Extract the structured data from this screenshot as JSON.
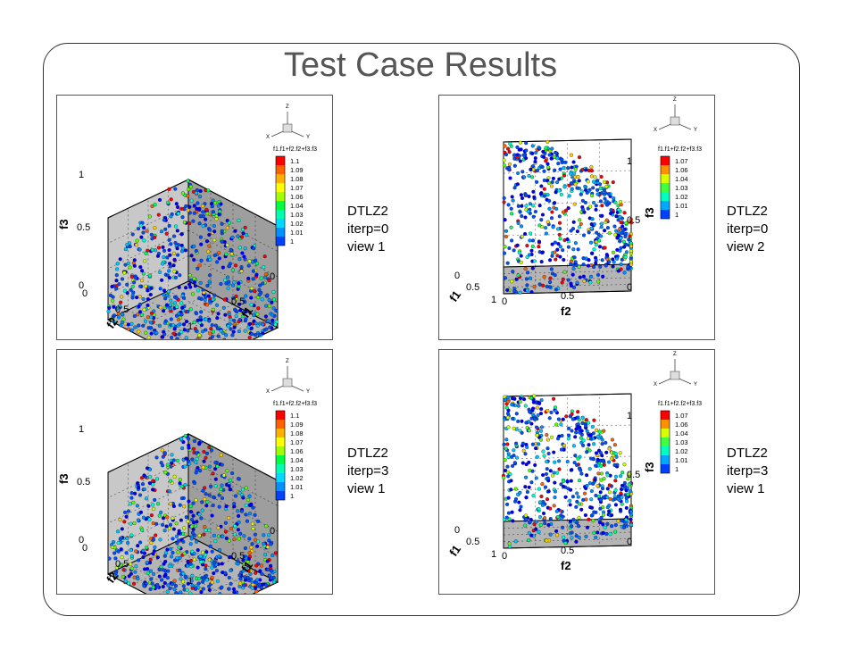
{
  "slide": {
    "title": "Test Case Results"
  },
  "panels": [
    {
      "name": "dtlz2-iterp0-view1",
      "view": "iso",
      "caption": [
        "DTLZ2",
        "iterp=0",
        "view 1"
      ],
      "chart_data": {
        "type": "scatter",
        "title": "",
        "axes": {
          "x": "f1",
          "y": "f2",
          "z": "f3",
          "range": [
            0,
            1
          ]
        },
        "ticks": [
          "0",
          "0.5",
          "1"
        ],
        "color_variable": "f1.f1+f2.f2+f3.f3",
        "legend": {
          "title": "f1.f1+f2.f2+f3.f3",
          "levels": [
            "1.1",
            "1.09",
            "1.08",
            "1.07",
            "1.06",
            "1.04",
            "1.03",
            "1.02",
            "1.01",
            "1"
          ]
        },
        "triad": {
          "x": "X",
          "y": "Y",
          "z": "Z"
        },
        "points": "approximately 600 points on the DTLZ2 Pareto front f1²+f2²+f3²≈1, f1,f2,f3 in [0,1]",
        "n_points": 600
      }
    },
    {
      "name": "dtlz2-iterp0-view2",
      "view": "side",
      "caption": [
        "DTLZ2",
        "iterp=0",
        "view 2"
      ],
      "chart_data": {
        "type": "scatter",
        "title": "",
        "axes": {
          "x": "f1",
          "y": "f2",
          "z": "f3",
          "range": [
            0,
            1
          ]
        },
        "ticks": [
          "0",
          "0.5",
          "1"
        ],
        "color_variable": "f1.f1+f2.f2+f3.f3",
        "legend": {
          "title": "f1.f1+f2.f2+f3.f3",
          "levels": [
            "1.07",
            "1.06",
            "1.04",
            "1.03",
            "1.02",
            "1.01",
            "1"
          ]
        },
        "triad": {
          "x": "X",
          "y": "Y",
          "z": "Z"
        },
        "points": "approximately 600 points on the DTLZ2 Pareto front f1²+f2²+f3²≈1, f1,f2,f3 in [0,1]",
        "n_points": 600
      }
    },
    {
      "name": "dtlz2-iterp3-view1",
      "view": "iso",
      "caption": [
        "DTLZ2",
        "iterp=3",
        "view 1"
      ],
      "chart_data": {
        "type": "scatter",
        "title": "",
        "axes": {
          "x": "f1",
          "y": "f2",
          "z": "f3",
          "range": [
            0,
            1
          ]
        },
        "ticks": [
          "0",
          "0.5",
          "1"
        ],
        "color_variable": "f1.f1+f2.f2+f3.f3",
        "legend": {
          "title": "f1.f1+f2.f2+f3.f3",
          "levels": [
            "1.1",
            "1.09",
            "1.08",
            "1.07",
            "1.06",
            "1.04",
            "1.03",
            "1.02",
            "1.01",
            "1"
          ]
        },
        "triad": {
          "x": "X",
          "y": "Y",
          "z": "Z"
        },
        "points": "approximately 600 points on the DTLZ2 Pareto front f1²+f2²+f3²≈1, f1,f2,f3 in [0,1]",
        "n_points": 600
      }
    },
    {
      "name": "dtlz2-iterp3-view1b",
      "view": "side",
      "caption": [
        "DTLZ2",
        "iterp=3",
        "view 1"
      ],
      "chart_data": {
        "type": "scatter",
        "title": "",
        "axes": {
          "x": "f1",
          "y": "f2",
          "z": "f3",
          "range": [
            0,
            1
          ]
        },
        "ticks": [
          "0",
          "0.5",
          "1"
        ],
        "color_variable": "f1.f1+f2.f2+f3.f3",
        "legend": {
          "title": "f1.f1+f2.f2+f3.f3",
          "levels": [
            "1.07",
            "1.06",
            "1.04",
            "1.03",
            "1.02",
            "1.01",
            "1"
          ]
        },
        "triad": {
          "x": "X",
          "y": "Y",
          "z": "Z"
        },
        "points": "approximately 600 points on the DTLZ2 Pareto front f1²+f2²+f3²≈1, f1,f2,f3 in [0,1]",
        "n_points": 600
      }
    }
  ],
  "colors": {
    "palette": [
      "#0000ff",
      "#0050ff",
      "#0090ff",
      "#00c8ff",
      "#00ffd0",
      "#00ff60",
      "#60ff00",
      "#d0ff00",
      "#ffd000",
      "#ff6000",
      "#ff0000"
    ],
    "wall": "#c8c8c8",
    "wall_dark": "#9e9e9e",
    "floor": "#b5b5b5"
  }
}
